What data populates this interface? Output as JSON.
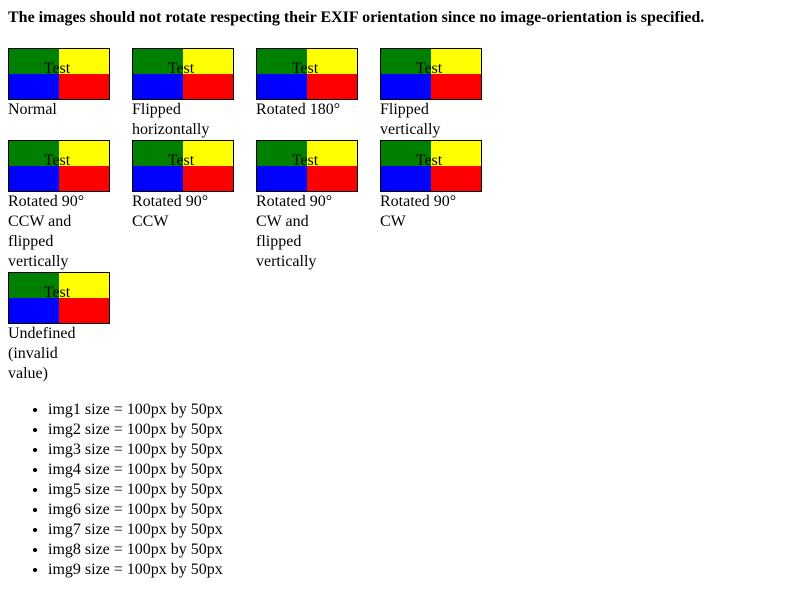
{
  "heading": "The images should not rotate respecting their EXIF orientation since no image-orientation is specified.",
  "swatch": {
    "label": "Test",
    "colors": {
      "top_left": "#008000",
      "top_right": "#ffff00",
      "bottom_left": "#0000ff",
      "bottom_right": "#ff0000"
    }
  },
  "images": [
    {
      "caption": "Normal"
    },
    {
      "caption": "Flipped horizontally"
    },
    {
      "caption": "Rotated 180°"
    },
    {
      "caption": "Flipped vertically"
    },
    {
      "caption": "Rotated 90° CCW and flipped vertically"
    },
    {
      "caption": "Rotated 90° CCW"
    },
    {
      "caption": "Rotated 90° CW and flipped vertically"
    },
    {
      "caption": "Rotated 90° CW"
    },
    {
      "caption": "Undefined (invalid value)"
    }
  ],
  "sizes": [
    "img1 size = 100px by 50px",
    "img2 size = 100px by 50px",
    "img3 size = 100px by 50px",
    "img4 size = 100px by 50px",
    "img5 size = 100px by 50px",
    "img6 size = 100px by 50px",
    "img7 size = 100px by 50px",
    "img8 size = 100px by 50px",
    "img9 size = 100px by 50px"
  ]
}
